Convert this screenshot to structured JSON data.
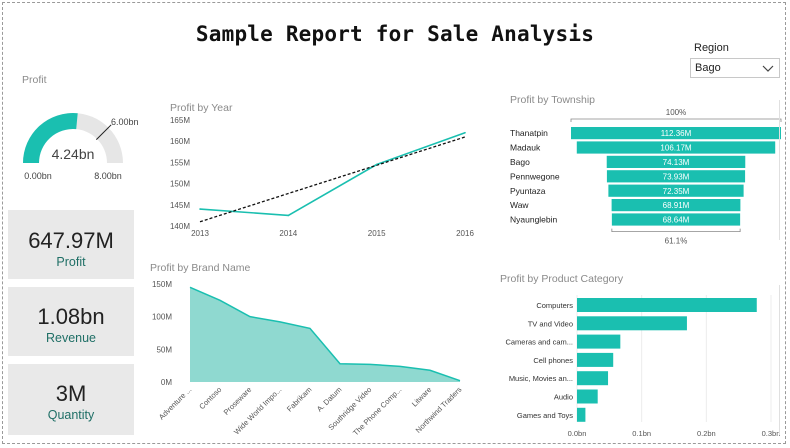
{
  "title": "Sample Report for Sale Analysis",
  "region": {
    "label": "Region",
    "value": "Bago"
  },
  "colors": {
    "teal": "#1abfb0",
    "teal_fill": "#8fd9d0",
    "trend": "#111111"
  },
  "gauge": {
    "title": "Profit",
    "value_label": "4.24bn",
    "min_label": "0.00bn",
    "max_label": "8.00bn",
    "target_label": "6.00bn",
    "value": 4.24,
    "min": 0,
    "max": 8,
    "target": 6
  },
  "cards": [
    {
      "value": "647.97M",
      "label": "Profit"
    },
    {
      "value": "1.08bn",
      "label": "Revenue"
    },
    {
      "value": "3M",
      "label": "Quantity"
    }
  ],
  "chart_data": [
    {
      "id": "year",
      "type": "line",
      "title": "Profit by Year",
      "x": [
        2013,
        2014,
        2015,
        2016
      ],
      "x_labels": [
        "2013",
        "2014",
        "2015",
        "2016"
      ],
      "values": [
        144,
        142.5,
        154.5,
        162
      ],
      "trend": [
        141,
        147.67,
        154.33,
        161
      ],
      "y_ticks": [
        140,
        145,
        150,
        155,
        160,
        165
      ],
      "y_tick_labels": [
        "140M",
        "145M",
        "150M",
        "155M",
        "160M",
        "165M"
      ],
      "ylim": [
        140,
        165
      ]
    },
    {
      "id": "brand",
      "type": "area",
      "title": "Profit by Brand Name",
      "categories": [
        "Adventure ...",
        "Contoso",
        "Proseware",
        "Wide World Impo...",
        "Fabrikam",
        "A. Datum",
        "Southridge Video",
        "The Phone Comp...",
        "Litware",
        "Northwind Traders"
      ],
      "values": [
        145,
        125,
        100,
        92,
        82,
        28,
        27,
        24,
        18,
        2
      ],
      "y_ticks": [
        0,
        50,
        100,
        150
      ],
      "y_tick_labels": [
        "0M",
        "50M",
        "100M",
        "150M"
      ],
      "ylim": [
        0,
        150
      ]
    },
    {
      "id": "township",
      "type": "bar",
      "title": "Profit by Township",
      "categories": [
        "Thanatpin",
        "Madauk",
        "Bago",
        "Pennwegone",
        "Pyuntaza",
        "Waw",
        "Nyaunglebin"
      ],
      "values": [
        112.36,
        106.17,
        74.13,
        73.93,
        72.35,
        68.91,
        68.64
      ],
      "value_labels": [
        "112.36M",
        "106.17M",
        "74.13M",
        "73.93M",
        "72.35M",
        "68.91M",
        "68.64M"
      ],
      "top_label": "100%",
      "bottom_label": "61.1%"
    },
    {
      "id": "category",
      "type": "bar",
      "title": "Profit by Product Category",
      "categories": [
        "Computers",
        "TV and Video",
        "Cameras and cam...",
        "Cell phones",
        "Music, Movies an...",
        "Audio",
        "Games and Toys"
      ],
      "values": [
        0.278,
        0.17,
        0.067,
        0.056,
        0.048,
        0.032,
        0.013
      ],
      "x_ticks": [
        0,
        0.1,
        0.2,
        0.3
      ],
      "x_tick_labels": [
        "0.0bn",
        "0.1bn",
        "0.2bn",
        "0.3bn"
      ],
      "xlim": [
        0,
        0.3
      ]
    }
  ]
}
